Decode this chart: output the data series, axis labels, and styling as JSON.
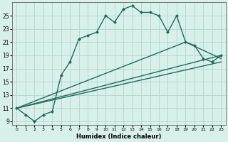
{
  "xlabel": "Humidex (Indice chaleur)",
  "line_color": "#1f6b58",
  "bg_color": "#d8f0ea",
  "grid_color": "#b8d8d0",
  "xlim": [
    -0.5,
    23.5
  ],
  "ylim": [
    8.5,
    27
  ],
  "yticks": [
    9,
    11,
    13,
    15,
    17,
    19,
    21,
    23,
    25
  ],
  "xticks": [
    0,
    1,
    2,
    3,
    4,
    5,
    6,
    7,
    8,
    9,
    10,
    11,
    12,
    13,
    14,
    15,
    16,
    17,
    18,
    19,
    20,
    21,
    22,
    23
  ],
  "series1_x": [
    0,
    1,
    2,
    3,
    4,
    5,
    6,
    7,
    8,
    9,
    10,
    11,
    12,
    13,
    14,
    15,
    16,
    17,
    18,
    19,
    20,
    21,
    22,
    23
  ],
  "series1_y": [
    11,
    10,
    9,
    10,
    10.5,
    16,
    18,
    21.5,
    22,
    22.5,
    25,
    24,
    26,
    26.5,
    25.5,
    25.5,
    25,
    22.5,
    25,
    21,
    20.5,
    18.5,
    18,
    19
  ],
  "line2_x": [
    0,
    23
  ],
  "line2_y": [
    11,
    18
  ],
  "line3_x": [
    0,
    23
  ],
  "line3_y": [
    11,
    19
  ],
  "line4_x": [
    0,
    19,
    23
  ],
  "line4_y": [
    11,
    21,
    18.5
  ]
}
